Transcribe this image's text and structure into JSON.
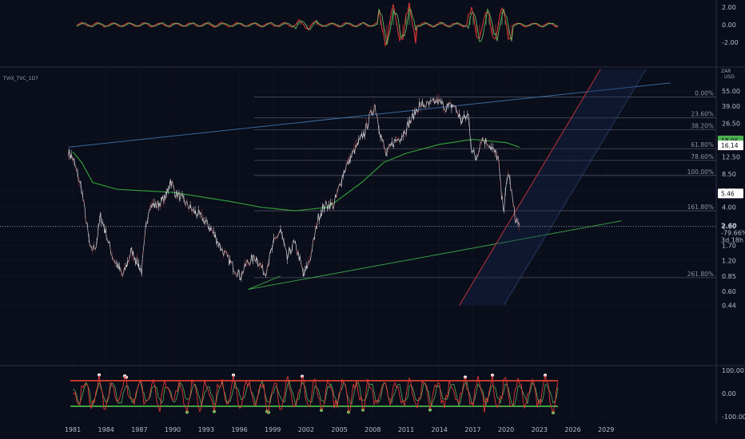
{
  "header": {
    "symbol": "TVIX_TVC_1D7",
    "currency": "USD",
    "scale_label": "ZAR"
  },
  "colors": {
    "background": "#0a0d1a",
    "grid": "#1c2133",
    "price": "#e6e6e6",
    "ma_green": "#2f9a3a",
    "fib_line": "#5a6070",
    "blue_trend": "#3a6ea8",
    "red_trend": "#e53935",
    "support_green": "#3aa04a",
    "osc_red": "#e53935",
    "osc_green": "#6fd26b",
    "band_red": "#c0392b",
    "band_green": "#43a047",
    "label_green": "#4caf50",
    "label_white": "#ffffff"
  },
  "chart_data": [
    {
      "type": "line",
      "panel": "top-oscillator",
      "y_ticks": [
        "2.00",
        "0.00",
        "-2.00"
      ],
      "ylim": [
        -2.6,
        2.6
      ]
    },
    {
      "type": "line",
      "panel": "price",
      "scale": "log",
      "x_ticks": [
        "1981",
        "1984",
        "1987",
        "1990",
        "1993",
        "1996",
        "1999",
        "2002",
        "2005",
        "2008",
        "2011",
        "2014",
        "2017",
        "2020",
        "2023",
        "2026",
        "2029"
      ],
      "y_ticks": [
        "55.00",
        "39.00",
        "26.50",
        "18.50",
        "12.50",
        "8.50",
        "5.80",
        "4.00",
        "2.60",
        "1.70",
        "1.20",
        "0.85",
        "0.60",
        "0.44"
      ],
      "fib_levels": [
        {
          "label": "0.00%",
          "value": 48
        },
        {
          "label": "23.60%",
          "value": 30
        },
        {
          "label": "38.20%",
          "value": 23
        },
        {
          "label": "61.80%",
          "value": 15
        },
        {
          "label": "78.60%",
          "value": 11.5
        },
        {
          "label": "100.00%",
          "value": 8.2
        },
        {
          "label": "161.80%",
          "value": 3.7
        },
        {
          "label": "261.80%",
          "value": 0.82
        }
      ],
      "price_badges": [
        {
          "text": "18.06",
          "value": 18.06,
          "style": "green"
        },
        {
          "text": "16.14",
          "value": 16.14,
          "style": "white"
        },
        {
          "text": "5.46",
          "value": 5.46,
          "style": "white"
        }
      ],
      "last_price": {
        "value": "2.60",
        "change": "-79.66%",
        "countdown": "3d 18h"
      },
      "price_series": {
        "x": [
          1980.6,
          1981.0,
          1981.8,
          1982.6,
          1983.1,
          1983.5,
          1983.9,
          1984.6,
          1985.5,
          1986.3,
          1987.2,
          1987.6,
          1987.9,
          1988.6,
          1989.4,
          1989.8,
          1990.2,
          1991.0,
          1991.8,
          1992.6,
          1993.5,
          1994.5,
          1995.3,
          1996.1,
          1996.7,
          1997.5,
          1998.3,
          1999.1,
          1999.7,
          2000.3,
          2000.9,
          2001.3,
          2001.8,
          2002.4,
          2003.1,
          2003.7,
          2004.5,
          2005.4,
          2006.3,
          2007.3,
          2007.7,
          2008.2,
          2008.7,
          2009.2,
          2009.8,
          2010.6,
          2011.4,
          2012.2,
          2013.0,
          2013.8,
          2014.6,
          2015.3,
          2016.0,
          2016.6,
          2016.9,
          2017.3,
          2017.8,
          2018.4,
          2018.9,
          2019.3,
          2019.6,
          2019.8,
          2020.2,
          2020.5,
          2020.8,
          2021.2
        ],
        "y": [
          14,
          12,
          6,
          1.5,
          1.7,
          3.3,
          2.4,
          1.3,
          0.85,
          1.5,
          0.95,
          2.6,
          4.2,
          4.2,
          5.1,
          7.5,
          5.6,
          4.6,
          3.7,
          3.2,
          2.4,
          1.5,
          1.1,
          0.85,
          1.15,
          1.3,
          0.9,
          1.8,
          2.4,
          1.25,
          1.8,
          1.4,
          0.85,
          1.3,
          3.2,
          4.2,
          4.2,
          9,
          14,
          22,
          30,
          40,
          21,
          13,
          17,
          20,
          28,
          40,
          40,
          44,
          38,
          40,
          28,
          32,
          15,
          12,
          19,
          17,
          14,
          12,
          5,
          4,
          9,
          5.5,
          3.2,
          2.6
        ]
      },
      "ma_series": {
        "x": [
          1981.0,
          1981.8,
          1982.8,
          1985,
          1990,
          1995,
          1998,
          2001,
          2004,
          2007,
          2009,
          2011,
          2014,
          2017,
          2018.5,
          2020,
          2021.2
        ],
        "y": [
          14,
          11,
          7,
          6,
          5.6,
          4.6,
          4.0,
          3.7,
          4.0,
          7,
          11,
          13.5,
          16.5,
          18.5,
          17.8,
          17.2,
          15.5
        ]
      },
      "trendlines": [
        {
          "name": "upper",
          "from": [
            1980.6,
            15.5
          ],
          "to": [
            2034.8,
            66
          ]
        },
        {
          "name": "support",
          "from": [
            1996.8,
            0.63
          ],
          "to": [
            2030.4,
            2.95
          ]
        },
        {
          "name": "red",
          "from": [
            2015.8,
            0.44
          ],
          "to": [
            2028.5,
            90
          ]
        },
        {
          "name": "channel",
          "from": [
            2019.8,
            0.44
          ],
          "to": [
            2032.6,
            90
          ]
        },
        {
          "name": "early-support",
          "from": [
            1996.8,
            0.63
          ],
          "to": [
            1999.7,
            0.85
          ]
        }
      ]
    },
    {
      "type": "line",
      "panel": "bottom-oscillator",
      "y_ticks": [
        "100.00",
        "0.00",
        "-100.00"
      ],
      "ylim": [
        -115,
        115
      ],
      "band_upper": 55,
      "band_lower": -55
    }
  ]
}
